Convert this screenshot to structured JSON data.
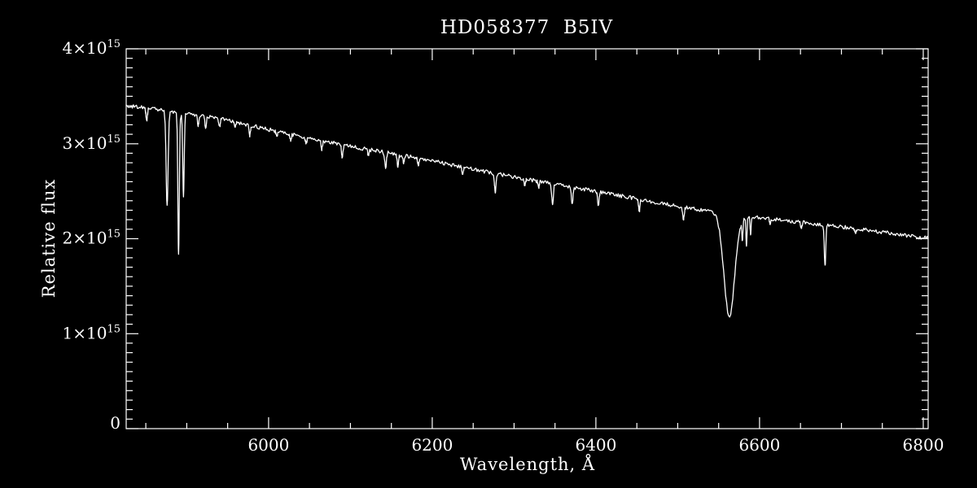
{
  "window": {
    "background_color": "#000000",
    "foreground_color": "#ffffff"
  },
  "chart_data": {
    "type": "line",
    "title": "HD058377  B5IV",
    "xlabel": "Wavelength, Å",
    "ylabel": "Relative flux",
    "xlim": [
      5826,
      6806
    ],
    "ylim": [
      0,
      4000000000000000.0
    ],
    "grid": false,
    "legend": null,
    "axes_style": "box-with-inward-ticks",
    "x_ticks": {
      "minor_step": 50,
      "major": [
        {
          "value": 6000,
          "text": "6000"
        },
        {
          "value": 6200,
          "text": "6200"
        },
        {
          "value": 6400,
          "text": "6400"
        },
        {
          "value": 6600,
          "text": "6600"
        },
        {
          "value": 6800,
          "text": "6800"
        }
      ]
    },
    "y_ticks": {
      "minor_step": 100000000000000.0,
      "major": [
        {
          "value": 0,
          "text": "0",
          "sup": ""
        },
        {
          "value": 1000000000000000.0,
          "text": "1×10",
          "sup": "15"
        },
        {
          "value": 2000000000000000.0,
          "text": "2×10",
          "sup": "15"
        },
        {
          "value": 3000000000000000.0,
          "text": "3×10",
          "sup": "15"
        },
        {
          "value": 4000000000000000.0,
          "text": "4×10",
          "sup": "15"
        }
      ]
    },
    "series": [
      {
        "name": "stellar-spectrum",
        "color": "#ffffff",
        "flux_unit": 1000000000000000.0,
        "noise_amplitude": 0.04,
        "continuum_points": [
          [
            5826,
            3.4
          ],
          [
            5850,
            3.38
          ],
          [
            5876,
            3.35
          ],
          [
            5900,
            3.32
          ],
          [
            5950,
            3.25
          ],
          [
            6000,
            3.15
          ],
          [
            6050,
            3.06
          ],
          [
            6100,
            2.97
          ],
          [
            6150,
            2.9
          ],
          [
            6200,
            2.82
          ],
          [
            6250,
            2.73
          ],
          [
            6300,
            2.65
          ],
          [
            6350,
            2.575
          ],
          [
            6400,
            2.5
          ],
          [
            6450,
            2.42
          ],
          [
            6500,
            2.34
          ],
          [
            6550,
            2.275
          ],
          [
            6600,
            2.22
          ],
          [
            6650,
            2.175
          ],
          [
            6700,
            2.125
          ],
          [
            6750,
            2.07
          ],
          [
            6806,
            2.005
          ]
        ],
        "absorption_lines": [
          {
            "wavelength": 5851,
            "depth": 0.13,
            "sigma": 1.0
          },
          {
            "wavelength": 5876,
            "depth": 1.01,
            "sigma": 1.2
          },
          {
            "wavelength": 5890,
            "depth": 1.48,
            "sigma": 0.9
          },
          {
            "wavelength": 5896,
            "depth": 0.87,
            "sigma": 0.9
          },
          {
            "wavelength": 5914,
            "depth": 0.1,
            "sigma": 0.9
          },
          {
            "wavelength": 5923,
            "depth": 0.12,
            "sigma": 0.9
          },
          {
            "wavelength": 5940,
            "depth": 0.09,
            "sigma": 0.9
          },
          {
            "wavelength": 5959,
            "depth": 0.06,
            "sigma": 0.9
          },
          {
            "wavelength": 5977,
            "depth": 0.11,
            "sigma": 0.9
          },
          {
            "wavelength": 6010,
            "depth": 0.06,
            "sigma": 0.9
          },
          {
            "wavelength": 6027,
            "depth": 0.07,
            "sigma": 0.9
          },
          {
            "wavelength": 6046,
            "depth": 0.06,
            "sigma": 0.9
          },
          {
            "wavelength": 6065,
            "depth": 0.09,
            "sigma": 0.9
          },
          {
            "wavelength": 6090,
            "depth": 0.13,
            "sigma": 0.9
          },
          {
            "wavelength": 6122,
            "depth": 0.06,
            "sigma": 0.9
          },
          {
            "wavelength": 6143,
            "depth": 0.16,
            "sigma": 1.0
          },
          {
            "wavelength": 6158,
            "depth": 0.13,
            "sigma": 0.9
          },
          {
            "wavelength": 6165,
            "depth": 0.08,
            "sigma": 0.9
          },
          {
            "wavelength": 6183,
            "depth": 0.07,
            "sigma": 0.9
          },
          {
            "wavelength": 6237,
            "depth": 0.07,
            "sigma": 0.9
          },
          {
            "wavelength": 6277,
            "depth": 0.21,
            "sigma": 0.9
          },
          {
            "wavelength": 6313,
            "depth": 0.06,
            "sigma": 0.9
          },
          {
            "wavelength": 6330,
            "depth": 0.06,
            "sigma": 0.9
          },
          {
            "wavelength": 6347,
            "depth": 0.22,
            "sigma": 1.0
          },
          {
            "wavelength": 6371,
            "depth": 0.17,
            "sigma": 1.0
          },
          {
            "wavelength": 6403,
            "depth": 0.14,
            "sigma": 0.9
          },
          {
            "wavelength": 6453,
            "depth": 0.12,
            "sigma": 0.9
          },
          {
            "wavelength": 6507,
            "depth": 0.12,
            "sigma": 0.9
          },
          {
            "wavelength": 6563,
            "depth": 1.08,
            "sigma": 6.5
          },
          {
            "wavelength": 6579,
            "depth": 0.22,
            "sigma": 0.7
          },
          {
            "wavelength": 6584,
            "depth": 0.3,
            "sigma": 0.7
          },
          {
            "wavelength": 6589,
            "depth": 0.18,
            "sigma": 0.7
          },
          {
            "wavelength": 6613,
            "depth": 0.06,
            "sigma": 0.8
          },
          {
            "wavelength": 6651,
            "depth": 0.07,
            "sigma": 0.8
          },
          {
            "wavelength": 6680,
            "depth": 0.43,
            "sigma": 0.9
          },
          {
            "wavelength": 6717,
            "depth": 0.05,
            "sigma": 0.8
          }
        ]
      }
    ]
  }
}
